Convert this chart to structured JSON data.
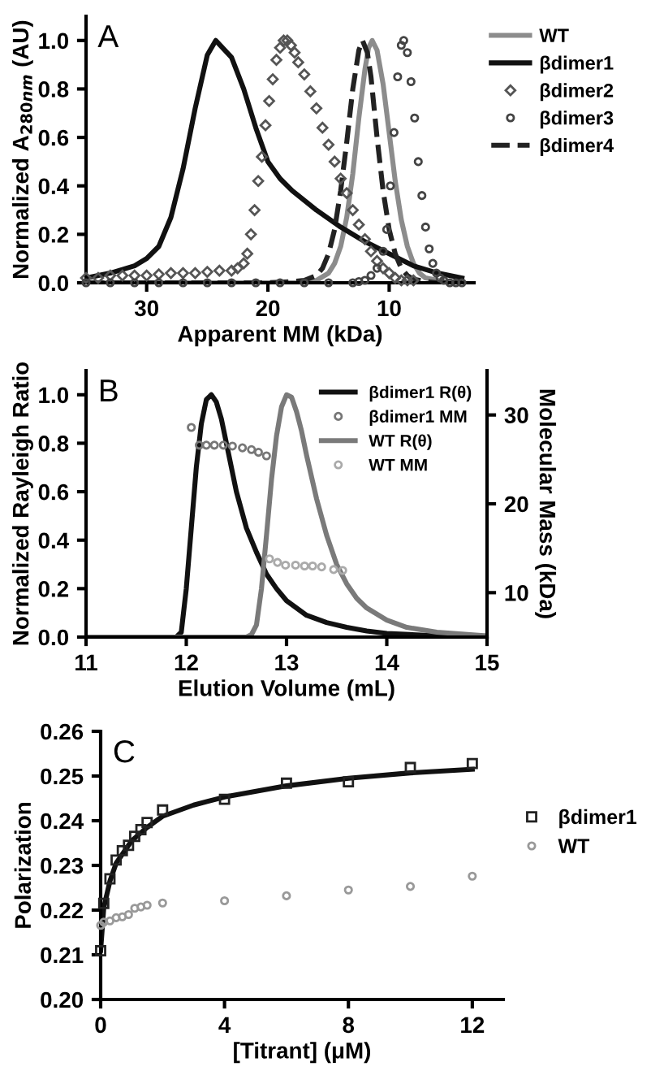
{
  "chart_data": [
    {
      "type": "line",
      "xlabel": "Apparent MM (kDa)",
      "ylabel": "Normalized A$_{280nm}$ (AU)",
      "annotations": [
        "A"
      ],
      "xlim": [
        35,
        3
      ],
      "xticks": [
        30,
        20,
        10
      ],
      "ylim": [
        0,
        1.1
      ],
      "yticks": [
        {
          "value": 0,
          "label": "0.0"
        },
        {
          "value": 0.2,
          "label": "0.2"
        },
        {
          "value": 0.4,
          "label": "0.4"
        },
        {
          "value": 0.6,
          "label": "0.6"
        },
        {
          "value": 0.8,
          "label": "0.8"
        },
        {
          "value": 1,
          "label": "1.0"
        }
      ],
      "legend": "top right",
      "series": [
        {
          "name": "WT",
          "color": "#8c8c8c",
          "line_style": "solid",
          "x": [
            35,
            30,
            25,
            20,
            17,
            16,
            15,
            14.5,
            14,
            13.5,
            13,
            12.5,
            12,
            11.7,
            11.4,
            11,
            10.5,
            10,
            9.5,
            9,
            8.5,
            8,
            7.5,
            7,
            6,
            5,
            4
          ],
          "values": [
            0,
            0,
            0,
            0,
            0,
            0.01,
            0.04,
            0.08,
            0.15,
            0.27,
            0.45,
            0.68,
            0.88,
            0.97,
            1.0,
            0.96,
            0.82,
            0.62,
            0.42,
            0.26,
            0.15,
            0.08,
            0.04,
            0.02,
            0.01,
            0,
            0
          ]
        },
        {
          "name": "βdimer1",
          "color": "#111111",
          "line_style": "solid",
          "x": [
            35,
            33,
            31,
            30,
            29,
            28,
            27,
            26,
            25,
            24.3,
            23,
            22,
            21,
            20,
            19,
            18,
            16,
            14,
            12,
            10,
            8,
            6,
            4
          ],
          "values": [
            0.02,
            0.04,
            0.07,
            0.1,
            0.15,
            0.27,
            0.47,
            0.72,
            0.94,
            1.0,
            0.93,
            0.8,
            0.64,
            0.5,
            0.43,
            0.38,
            0.3,
            0.23,
            0.17,
            0.12,
            0.07,
            0.04,
            0.02
          ]
        },
        {
          "name": "βdimer2",
          "type": "scatter",
          "marker": "diamond",
          "color": "#555555",
          "x": [
            35,
            34,
            33,
            32,
            31,
            30,
            29,
            28,
            27,
            26,
            25,
            24,
            23,
            22.5,
            22,
            21.7,
            21.4,
            21.1,
            20.8,
            20.5,
            20.2,
            19.9,
            19.6,
            19.3,
            19,
            18.7,
            18.4,
            18.1,
            17.8,
            17.5,
            17,
            16.5,
            16,
            15.5,
            15,
            14.5,
            14,
            13.5,
            13,
            12.5,
            12,
            11.5,
            11,
            10.5,
            10,
            9.5,
            9,
            8.5,
            8
          ],
          "values": [
            0.02,
            0.02,
            0.03,
            0.03,
            0.03,
            0.03,
            0.035,
            0.04,
            0.04,
            0.04,
            0.045,
            0.05,
            0.05,
            0.06,
            0.08,
            0.12,
            0.2,
            0.3,
            0.42,
            0.52,
            0.65,
            0.75,
            0.84,
            0.92,
            0.97,
            1.0,
            1.0,
            0.98,
            0.95,
            0.91,
            0.86,
            0.79,
            0.72,
            0.64,
            0.57,
            0.5,
            0.43,
            0.37,
            0.3,
            0.24,
            0.18,
            0.13,
            0.09,
            0.06,
            0.04,
            0.02,
            0.01,
            0.01,
            0.01
          ]
        },
        {
          "name": "βdimer3",
          "type": "scatter",
          "marker": "circle",
          "color": "#444444",
          "x": [
            35,
            33,
            31,
            29,
            27,
            25,
            23,
            21,
            19,
            17,
            15,
            13,
            12.5,
            12,
            11.5,
            11,
            10.5,
            10.2,
            9.9,
            9.6,
            9.3,
            9,
            8.8,
            8.5,
            8.2,
            7.9,
            7.6,
            7.3,
            7,
            6.7,
            6.4,
            6.1,
            5.8,
            5.5,
            5,
            4.5,
            4
          ],
          "values": [
            0,
            0,
            0,
            0,
            0,
            0,
            0,
            0,
            0,
            0,
            0,
            0,
            0.005,
            0.01,
            0.03,
            0.06,
            0.13,
            0.22,
            0.4,
            0.62,
            0.85,
            0.98,
            1.0,
            0.95,
            0.83,
            0.68,
            0.5,
            0.36,
            0.23,
            0.14,
            0.08,
            0.04,
            0.02,
            0.01,
            0,
            0,
            0
          ]
        },
        {
          "name": "βdimer4",
          "color": "#222222",
          "line_style": "dashed",
          "x": [
            35,
            30,
            25,
            20,
            18,
            17,
            16,
            15.5,
            15,
            14.5,
            14,
            13.5,
            13,
            12.5,
            12.2,
            11.8,
            11.5,
            11,
            10.5,
            10,
            9.5,
            9,
            8.5,
            8,
            7,
            6,
            4
          ],
          "values": [
            0,
            0,
            0,
            0,
            0.005,
            0.01,
            0.03,
            0.06,
            0.12,
            0.22,
            0.38,
            0.58,
            0.8,
            0.96,
            1.0,
            0.95,
            0.85,
            0.6,
            0.38,
            0.22,
            0.12,
            0.06,
            0.03,
            0.015,
            0.005,
            0,
            0
          ]
        }
      ]
    },
    {
      "type": "line",
      "xlabel": "Elution Volume (mL)",
      "ylabel": "Normalized Rayleigh Ratio",
      "y2label": "Molecular Mass (kDa)",
      "annotations": [
        "B"
      ],
      "xlim": [
        11,
        15
      ],
      "xticks": [
        11,
        12,
        13,
        14,
        15
      ],
      "ylim": [
        0,
        1.1
      ],
      "yticks": [
        {
          "value": 0,
          "label": "0.0"
        },
        {
          "value": 0.2,
          "label": "0.2"
        },
        {
          "value": 0.4,
          "label": "0.4"
        },
        {
          "value": 0.6,
          "label": "0.6"
        },
        {
          "value": 0.8,
          "label": "0.8"
        },
        {
          "value": 1,
          "label": "1.0"
        }
      ],
      "y2lim": [
        5,
        35
      ],
      "y2ticks": [
        10,
        20,
        30
      ],
      "legend": "top right",
      "series": [
        {
          "name": "βdimer1 R(θ)",
          "color": "#111111",
          "line_style": "solid",
          "x": [
            11,
            11.9,
            11.95,
            12.0,
            12.05,
            12.1,
            12.15,
            12.2,
            12.25,
            12.3,
            12.35,
            12.4,
            12.5,
            12.6,
            12.7,
            12.8,
            12.9,
            13.0,
            13.2,
            13.4,
            13.6,
            13.8,
            14,
            14.5,
            15
          ],
          "values": [
            0,
            0,
            0.02,
            0.2,
            0.45,
            0.7,
            0.88,
            0.98,
            1.0,
            0.97,
            0.9,
            0.8,
            0.6,
            0.45,
            0.35,
            0.26,
            0.2,
            0.15,
            0.09,
            0.06,
            0.04,
            0.025,
            0.015,
            0.005,
            0
          ]
        },
        {
          "name": "βdimer1 MM",
          "type": "scatter",
          "marker": "circle",
          "axis": "y2",
          "color": "#777777",
          "x": [
            12.05,
            12.13,
            12.2,
            12.28,
            12.37,
            12.46,
            12.56,
            12.65,
            12.72,
            12.8
          ],
          "values": [
            28.6,
            26.6,
            26.6,
            26.6,
            26.6,
            26.5,
            26.3,
            26.1,
            25.8,
            25.4
          ]
        },
        {
          "name": "WT R(θ)",
          "color": "#7a7a7a",
          "line_style": "solid",
          "x": [
            11,
            12.6,
            12.65,
            12.7,
            12.75,
            12.8,
            12.85,
            12.9,
            12.95,
            13.0,
            13.05,
            13.1,
            13.15,
            13.2,
            13.3,
            13.4,
            13.5,
            13.6,
            13.7,
            13.8,
            14,
            14.2,
            14.5,
            15
          ],
          "values": [
            0,
            0,
            0.01,
            0.05,
            0.2,
            0.42,
            0.65,
            0.83,
            0.95,
            1.0,
            0.99,
            0.93,
            0.85,
            0.75,
            0.57,
            0.42,
            0.3,
            0.22,
            0.16,
            0.12,
            0.07,
            0.04,
            0.02,
            0.005
          ]
        },
        {
          "name": "WT MM",
          "type": "scatter",
          "marker": "circle",
          "axis": "y2",
          "color": "#aaaaaa",
          "x": [
            12.83,
            12.91,
            12.99,
            13.09,
            13.18,
            13.26,
            13.35,
            13.47,
            13.56
          ],
          "values": [
            13.8,
            13.4,
            13.1,
            13.1,
            13.0,
            13.0,
            12.9,
            12.6,
            12.5
          ]
        }
      ]
    },
    {
      "type": "scatter",
      "xlabel": "[Titrant] (μM)",
      "ylabel": "Polarization",
      "annotations": [
        "C"
      ],
      "xlim": [
        0,
        13
      ],
      "xticks": [
        0,
        4,
        8,
        12
      ],
      "ylim": [
        0.2,
        0.26
      ],
      "yticks": [
        {
          "value": 0.2,
          "label": "0.20"
        },
        {
          "value": 0.21,
          "label": "0.21"
        },
        {
          "value": 0.22,
          "label": "0.22"
        },
        {
          "value": 0.23,
          "label": "0.23"
        },
        {
          "value": 0.24,
          "label": "0.24"
        },
        {
          "value": 0.25,
          "label": "0.25"
        },
        {
          "value": 0.26,
          "label": "0.26"
        }
      ],
      "legend": "right",
      "series": [
        {
          "name": "βdimer1",
          "marker": "square",
          "color": "#222222",
          "x": [
            0,
            0.1,
            0.3,
            0.5,
            0.7,
            0.9,
            1.1,
            1.3,
            1.5,
            2,
            4,
            6,
            8,
            10,
            12
          ],
          "values": [
            0.2109,
            0.2215,
            0.227,
            0.2312,
            0.2333,
            0.2345,
            0.2365,
            0.238,
            0.2396,
            0.2424,
            0.2448,
            0.2484,
            0.2487,
            0.2519,
            0.2528
          ]
        },
        {
          "name": "WT",
          "marker": "circle",
          "color": "#999999",
          "x": [
            0,
            0.1,
            0.3,
            0.5,
            0.7,
            0.9,
            1.1,
            1.3,
            1.5,
            2,
            4,
            6,
            8,
            10,
            12
          ],
          "values": [
            0.2166,
            0.2173,
            0.2176,
            0.2183,
            0.2185,
            0.219,
            0.2204,
            0.2207,
            0.2211,
            0.2216,
            0.2221,
            0.2232,
            0.2245,
            0.2253,
            0.2276
          ]
        },
        {
          "type": "line",
          "color": "#111111",
          "line_style": "solid",
          "x": [
            0,
            0.1,
            0.3,
            0.5,
            1,
            1.5,
            2,
            3,
            4,
            6,
            8,
            10,
            12
          ],
          "values": [
            0.211,
            0.2205,
            0.2265,
            0.2305,
            0.2355,
            0.2385,
            0.241,
            0.2435,
            0.2453,
            0.2478,
            0.2495,
            0.2507,
            0.2515
          ]
        }
      ]
    }
  ]
}
